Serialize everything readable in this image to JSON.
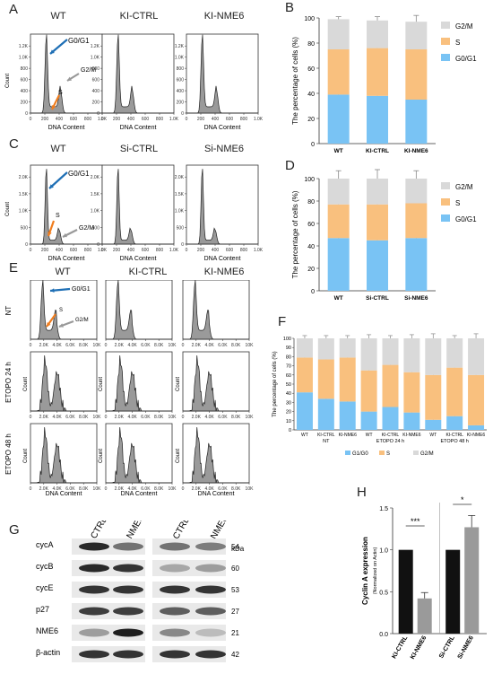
{
  "panels": {
    "A": {
      "letter": "A",
      "columns": [
        "WT",
        "KI-CTRL",
        "KI-NME6"
      ],
      "xlabel": "DNA Content",
      "ylabel": "Count",
      "xticks": [
        "0",
        "200",
        "400",
        "600",
        "800",
        "1.0K"
      ],
      "yticks": [
        "0",
        "200",
        "400",
        "600",
        "800",
        "1.0K",
        "1.2K"
      ],
      "ann": {
        "g0": "G0/G1",
        "s": "S",
        "g2": "G2/M"
      }
    },
    "C": {
      "letter": "C",
      "columns": [
        "WT",
        "Si-CTRL",
        "Si-NME6"
      ],
      "xlabel": "DNA Content",
      "ylabel": "Count",
      "xticks": [
        "0",
        "200",
        "400",
        "600",
        "800",
        "1.0K"
      ],
      "yticks": [
        "0",
        "500",
        "1.0K",
        "1.5K",
        "2.0K"
      ],
      "ann": {
        "g0": "G0/G1",
        "s": "S",
        "g2": "G2/M"
      }
    },
    "E": {
      "letter": "E",
      "columns": [
        "WT",
        "KI-CTRL",
        "KI-NME6"
      ],
      "rows": [
        "NT",
        "ETOPO 24 h",
        "ETOPO 48 h"
      ],
      "xlabel": "DNA Content",
      "ylabel": "Count",
      "xticks": [
        "0",
        "2.0K",
        "4.0K",
        "6.0K",
        "8.0K",
        "10K"
      ],
      "ann": {
        "g0": "G0/G1",
        "s": "S",
        "g2": "G2/M"
      }
    },
    "B": {
      "letter": "B"
    },
    "D": {
      "letter": "D"
    },
    "F": {
      "letter": "F"
    },
    "G": {
      "letter": "G",
      "lanes": [
        "KI-CTRL",
        "KI-NME6",
        "Si-CTRL",
        "Si-NME6"
      ],
      "unit": "kDa",
      "proteins": [
        {
          "name": "cycA",
          "kda": "54",
          "bands": [
            0.9,
            0.55,
            0.55,
            0.5
          ]
        },
        {
          "name": "cycB",
          "kda": "60",
          "bands": [
            0.9,
            0.85,
            0.3,
            0.35
          ]
        },
        {
          "name": "cycE",
          "kda": "53",
          "bands": [
            0.85,
            0.85,
            0.85,
            0.85
          ]
        },
        {
          "name": "p27",
          "kda": "27",
          "bands": [
            0.8,
            0.8,
            0.65,
            0.65
          ]
        },
        {
          "name": "NME6",
          "kda": "21",
          "bands": [
            0.35,
            0.95,
            0.45,
            0.2
          ]
        },
        {
          "name": "β-actin",
          "kda": "42",
          "bands": [
            0.85,
            0.85,
            0.85,
            0.85
          ]
        }
      ]
    },
    "H": {
      "letter": "H"
    }
  },
  "chart_data": [
    {
      "id": "B",
      "type": "bar",
      "stacked": true,
      "categories": [
        "WT",
        "KI-CTRL",
        "KI-NME6"
      ],
      "ylabel": "The percentage of cells (%)",
      "ylim": [
        0,
        100
      ],
      "yticks": [
        "0",
        "20",
        "40",
        "60",
        "80",
        "100"
      ],
      "legend_position": "right",
      "series": [
        {
          "name": "G0/G1",
          "color": "#79c3f4",
          "values": [
            39,
            38,
            35
          ],
          "errors": [
            2,
            4,
            3
          ]
        },
        {
          "name": "S",
          "color": "#f9c07e",
          "values": [
            36,
            38,
            40
          ],
          "errors": [
            3,
            4,
            4
          ]
        },
        {
          "name": "G2/M",
          "color": "#d9d9d9",
          "values": [
            24,
            22,
            22
          ],
          "errors": [
            2,
            3,
            5
          ]
        }
      ]
    },
    {
      "id": "D",
      "type": "bar",
      "stacked": true,
      "categories": [
        "WT",
        "Si-CTRL",
        "Si-NME6"
      ],
      "ylabel": "The percentage of cells (%)",
      "ylim": [
        0,
        100
      ],
      "yticks": [
        "0",
        "20",
        "40",
        "60",
        "80",
        "100"
      ],
      "legend_position": "right",
      "series": [
        {
          "name": "G0/G1",
          "color": "#79c3f4",
          "values": [
            47,
            45,
            47
          ],
          "errors": [
            7,
            8,
            7
          ]
        },
        {
          "name": "S",
          "color": "#f9c07e",
          "values": [
            30,
            32,
            31
          ],
          "errors": [
            5,
            6,
            5
          ]
        },
        {
          "name": "G2/M",
          "color": "#d9d9d9",
          "values": [
            23,
            23,
            22
          ],
          "errors": [
            7,
            8,
            7
          ]
        }
      ]
    },
    {
      "id": "F",
      "type": "bar",
      "stacked": true,
      "categories": [
        "WT",
        "KI-CTRL",
        "KI-NME6",
        "WT",
        "KI-CTRL",
        "KI-NME6",
        "WT",
        "KI-CTRL",
        "KI-NME6"
      ],
      "groups": [
        "NT",
        "ETOPO 24 h",
        "ETOPO 48 h"
      ],
      "ylabel": "The percentage of cells (%)",
      "ylim": [
        0,
        100
      ],
      "yticks": [
        "0",
        "10",
        "20",
        "30",
        "40",
        "50",
        "60",
        "70",
        "80",
        "90",
        "100"
      ],
      "legend_position": "bottom",
      "series": [
        {
          "name": "G1/G0",
          "color": "#79c3f4",
          "values": [
            41,
            34,
            31,
            20,
            25,
            19,
            11,
            15,
            5
          ],
          "errors": [
            1,
            2,
            2,
            2,
            2,
            2,
            3,
            1,
            1
          ]
        },
        {
          "name": "S",
          "color": "#f9c07e",
          "values": [
            38,
            43,
            48,
            45,
            46,
            44,
            49,
            53,
            55
          ],
          "errors": [
            2,
            2,
            2,
            2,
            2,
            2,
            3,
            2,
            2
          ]
        },
        {
          "name": "G2/M",
          "color": "#d9d9d9",
          "values": [
            21,
            23,
            21,
            35,
            29,
            37,
            40,
            32,
            40
          ],
          "errors": [
            3,
            3,
            3,
            4,
            3,
            4,
            5,
            3,
            5
          ]
        }
      ]
    },
    {
      "id": "H",
      "type": "bar",
      "categories": [
        "KI-CTRL",
        "KI-NME6",
        "Si-CTRL",
        "Si-NME6"
      ],
      "values": [
        1.0,
        0.42,
        1.0,
        1.27
      ],
      "errors": [
        0,
        0.07,
        0,
        0.14
      ],
      "colors": [
        "#111111",
        "#9a9a9a",
        "#111111",
        "#9a9a9a"
      ],
      "ylabel": "Cyclin A expression",
      "ylabel2": "(Normalized on Actin)",
      "ylim": [
        0,
        1.5
      ],
      "yticks": [
        "0.0",
        "0.5",
        "1.0",
        "1.5"
      ],
      "significance": [
        "***",
        "*"
      ]
    }
  ]
}
